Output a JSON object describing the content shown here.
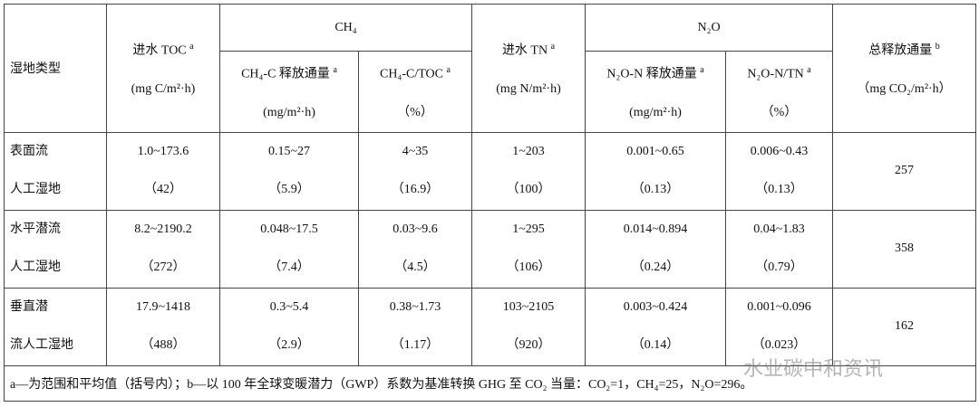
{
  "header": {
    "type": "湿地类型",
    "toc": {
      "label": "进水 TOC",
      "note": "a",
      "unit": "(mg C/m²·h)"
    },
    "ch4": "CH₄",
    "ch4_flux": {
      "label": "CH₄-C 释放通量",
      "note": "a",
      "unit": "(mg/m²·h)"
    },
    "ch4_ratio": {
      "label": "CH₄-C/TOC",
      "note": "a",
      "unit": "（%）"
    },
    "tn": {
      "label": "进水 TN",
      "note": "a",
      "unit": "(mg N/m²·h)"
    },
    "n2o": "N₂O",
    "n2o_flux": {
      "label": "N₂O-N 释放通量",
      "note": "a",
      "unit": "(mg/m²·h)"
    },
    "n2o_ratio": {
      "label": "N₂O-N/TN",
      "note": "a",
      "unit": "（%）"
    },
    "total": {
      "label": "总释放通量",
      "note": "b",
      "unit": "（mg CO₂/m²·h）"
    }
  },
  "rows": [
    {
      "type": [
        "表面流",
        "人工湿地"
      ],
      "cells": [
        [
          "1.0~173.6",
          "（42）"
        ],
        [
          "0.15~27",
          "（5.9）"
        ],
        [
          "4~35",
          "（16.9）"
        ],
        [
          "1~203",
          "（100）"
        ],
        [
          "0.001~0.65",
          "（0.13）"
        ],
        [
          "0.006~0.43",
          "（0.13）"
        ]
      ],
      "total": "257"
    },
    {
      "type": [
        "水平潜流",
        "人工湿地"
      ],
      "cells": [
        [
          "8.2~2190.2",
          "（272）"
        ],
        [
          "0.048~17.5",
          "（7.4）"
        ],
        [
          "0.03~9.6",
          "（4.5）"
        ],
        [
          "1~295",
          "（106）"
        ],
        [
          "0.014~0.894",
          "（0.24）"
        ],
        [
          "0.04~1.83",
          "（0.79）"
        ]
      ],
      "total": "358"
    },
    {
      "type": [
        "垂直潜",
        "流人工湿地"
      ],
      "cells": [
        [
          "17.9~1418",
          "（488）"
        ],
        [
          "0.3~5.4",
          "（2.9）"
        ],
        [
          "0.38~1.73",
          "（1.17）"
        ],
        [
          "103~2105",
          "（920）"
        ],
        [
          "0.003~0.424",
          "（0.14）"
        ],
        [
          "0.001~0.096",
          "（0.023）"
        ]
      ],
      "total": "162"
    }
  ],
  "footnote": "a—为范围和平均值（括号内）；b—以 100 年全球变暖潜力（GWP）系数为基准转换 GHG 至 CO₂ 当量：CO₂=1，CH₄=25，N₂O=296。",
  "watermark": "水业碳中和资讯"
}
